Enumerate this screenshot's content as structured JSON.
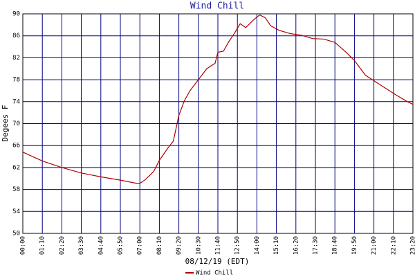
{
  "chart_data": {
    "type": "line",
    "title": "Wind Chill",
    "y_label": "Degees F",
    "x_label": "08/12/19 (EDT)",
    "x": [
      0,
      70,
      140,
      210,
      280,
      350,
      410,
      420,
      440,
      470,
      490,
      520,
      540,
      560,
      580,
      600,
      630,
      660,
      690,
      700,
      720,
      740,
      760,
      780,
      800,
      830,
      850,
      870,
      890,
      920,
      960,
      1000,
      1040,
      1080,
      1120,
      1160,
      1190,
      1230,
      1260,
      1300,
      1340,
      1380,
      1400
    ],
    "series": [
      {
        "name": "Wind Chill",
        "color": "#b00000",
        "values": [
          64.8,
          63.2,
          62,
          61,
          60.3,
          59.7,
          59.1,
          59.1,
          59.8,
          61.3,
          63.3,
          65.5,
          66.8,
          71.5,
          74.2,
          76,
          78,
          80,
          81,
          83,
          83.2,
          85,
          86.5,
          88.2,
          87.5,
          89,
          89.8,
          89.3,
          87.8,
          87,
          86.4,
          86.1,
          85.5,
          85.4,
          84.8,
          83,
          81.5,
          78.8,
          77.8,
          76.5,
          75.2,
          74,
          73.5
        ]
      }
    ],
    "xlim": [
      0,
      1400
    ],
    "xticks": [
      {
        "value": 0,
        "label": "00:00"
      },
      {
        "value": 70,
        "label": "01:10"
      },
      {
        "value": 140,
        "label": "02:20"
      },
      {
        "value": 210,
        "label": "03:30"
      },
      {
        "value": 280,
        "label": "04:40"
      },
      {
        "value": 350,
        "label": "05:50"
      },
      {
        "value": 420,
        "label": "07:00"
      },
      {
        "value": 490,
        "label": "08:10"
      },
      {
        "value": 560,
        "label": "09:20"
      },
      {
        "value": 630,
        "label": "10:30"
      },
      {
        "value": 700,
        "label": "11:40"
      },
      {
        "value": 770,
        "label": "12:50"
      },
      {
        "value": 840,
        "label": "14:00"
      },
      {
        "value": 910,
        "label": "15:10"
      },
      {
        "value": 980,
        "label": "16:20"
      },
      {
        "value": 1050,
        "label": "17:30"
      },
      {
        "value": 1120,
        "label": "18:40"
      },
      {
        "value": 1190,
        "label": "19:50"
      },
      {
        "value": 1260,
        "label": "21:00"
      },
      {
        "value": 1330,
        "label": "22:10"
      },
      {
        "value": 1400,
        "label": "23:20"
      }
    ],
    "ylim": [
      50,
      90
    ],
    "yticks": [
      50,
      54,
      58,
      62,
      66,
      70,
      74,
      78,
      82,
      86,
      90
    ],
    "grid": true,
    "grid_color": "#000080"
  }
}
